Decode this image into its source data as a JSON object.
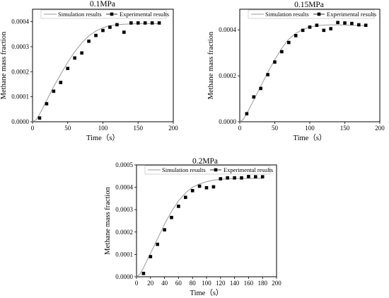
{
  "chart_data": [
    {
      "type": "line",
      "title": "0.1MPa",
      "xlabel": "Time（s）",
      "ylabel": "Methane mass fraction",
      "xlim": [
        0,
        200
      ],
      "ylim": [
        0,
        0.00045
      ],
      "xticks": [
        "0",
        "50",
        "100",
        "150",
        "200"
      ],
      "yticks": [
        "0.0000",
        "0.0001",
        "0.0002",
        "0.0003",
        "0.0004"
      ],
      "legend": [
        "Simulation results",
        "Experimental results"
      ],
      "legend_position": "top-right",
      "series": [
        {
          "name": "Simulation results",
          "x": [
            0,
            5,
            10,
            20,
            30,
            40,
            50,
            60,
            70,
            80,
            90,
            100,
            110,
            120,
            130,
            140,
            150,
            160,
            170,
            180
          ],
          "y": [
            0,
            8e-06,
            3e-05,
            8.5e-05,
            0.00014,
            0.00019,
            0.000238,
            0.00028,
            0.000315,
            0.000343,
            0.000363,
            0.000376,
            0.000384,
            0.000388,
            0.00039,
            0.000391,
            0.000392,
            0.000392,
            0.000392,
            0.000392
          ]
        },
        {
          "name": "Experimental results",
          "x": [
            10,
            20,
            30,
            40,
            50,
            60,
            70,
            80,
            90,
            100,
            110,
            120,
            130,
            140,
            150,
            160,
            170,
            180
          ],
          "y": [
            1.5e-05,
            7.2e-05,
            0.000122,
            0.000157,
            0.000213,
            0.000255,
            0.000275,
            0.000322,
            0.000345,
            0.000365,
            0.000378,
            0.000388,
            0.000358,
            0.000395,
            0.000395,
            0.000395,
            0.000395,
            0.000395
          ]
        }
      ]
    },
    {
      "type": "line",
      "title": "0.15MPa",
      "xlabel": "Time（s）",
      "ylabel": "Methane mass fraction",
      "xlim": [
        0,
        200
      ],
      "ylim": [
        0,
        0.00049
      ],
      "xticks": [
        "0",
        "50",
        "100",
        "150",
        "200"
      ],
      "yticks": [
        "0.0000",
        "0.0002",
        "0.0004"
      ],
      "legend": [
        "Simulation results",
        "Experimental results"
      ],
      "legend_position": "top-right",
      "series": [
        {
          "name": "Simulation results",
          "x": [
            0,
            5,
            10,
            20,
            30,
            40,
            50,
            60,
            70,
            80,
            90,
            100,
            110,
            120,
            130,
            140,
            150,
            160,
            170,
            180
          ],
          "y": [
            0,
            1e-05,
            3.5e-05,
            9.5e-05,
            0.000155,
            0.000215,
            0.00027,
            0.00032,
            0.00036,
            0.000385,
            0.000402,
            0.000412,
            0.000418,
            0.000421,
            0.000422,
            0.000422,
            0.000421,
            0.00042,
            0.000419,
            0.000418
          ]
        },
        {
          "name": "Experimental results",
          "x": [
            10,
            20,
            30,
            40,
            50,
            60,
            70,
            80,
            90,
            100,
            110,
            120,
            130,
            140,
            150,
            160,
            170,
            180
          ],
          "y": [
            3.5e-05,
            0.000108,
            0.000145,
            0.000205,
            0.00026,
            0.000305,
            0.000345,
            0.000375,
            0.000398,
            0.000412,
            0.00042,
            0.000398,
            0.000405,
            0.000432,
            0.00043,
            0.000428,
            0.000422,
            0.00042
          ]
        }
      ]
    },
    {
      "type": "line",
      "title": "0.2MPa",
      "xlabel": "Time（s）",
      "ylabel": "Methane mass fraction",
      "xlim": [
        0,
        200
      ],
      "ylim": [
        0,
        0.0005
      ],
      "xticks": [
        "0",
        "20",
        "40",
        "60",
        "80",
        "100",
        "120",
        "140",
        "160",
        "180",
        "200"
      ],
      "yticks": [
        "0.0000",
        "0.0001",
        "0.0002",
        "0.0003",
        "0.0004",
        "0.0005"
      ],
      "legend": [
        "Simulation results",
        "Experimental results"
      ],
      "legend_position": "top-right",
      "series": [
        {
          "name": "Simulation results",
          "x": [
            0,
            5,
            10,
            20,
            30,
            40,
            50,
            60,
            70,
            80,
            90,
            100,
            110,
            120,
            130,
            140,
            150,
            160,
            170,
            180
          ],
          "y": [
            0,
            1.2e-05,
            4e-05,
            0.000105,
            0.00017,
            0.000235,
            0.000292,
            0.00034,
            0.000375,
            0.0004,
            0.000415,
            0.000425,
            0.000432,
            0.000436,
            0.000438,
            0.000439,
            0.00044,
            0.00044,
            0.00044,
            0.00044
          ]
        },
        {
          "name": "Experimental results",
          "x": [
            10,
            20,
            30,
            40,
            50,
            60,
            70,
            80,
            90,
            100,
            110,
            120,
            130,
            140,
            150,
            160,
            170,
            180
          ],
          "y": [
            1.5e-05,
            9e-05,
            0.000145,
            0.00021,
            0.000265,
            0.000315,
            0.000355,
            0.000385,
            0.000405,
            0.000398,
            0.000402,
            0.000438,
            0.000442,
            0.000442,
            0.000442,
            0.000448,
            0.000447,
            0.000447
          ]
        }
      ]
    }
  ]
}
